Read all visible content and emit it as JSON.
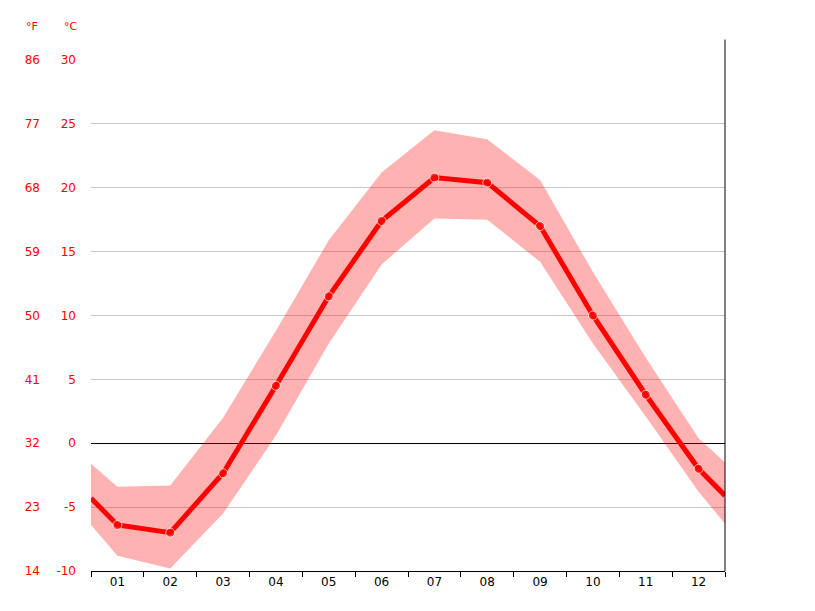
{
  "chart_data": {
    "type": "line",
    "x": [
      0.5,
      1,
      2,
      3,
      4,
      5,
      6,
      7,
      8,
      9,
      10,
      11,
      12,
      12.5
    ],
    "values": [
      -4.3,
      -6.4,
      -7.0,
      -2.35,
      4.5,
      11.5,
      17.4,
      20.8,
      20.4,
      17.0,
      10.0,
      3.8,
      -2.0,
      -4.1
    ],
    "high": [
      -1.6,
      -3.4,
      -3.3,
      2.0,
      8.8,
      15.9,
      21.2,
      24.5,
      23.8,
      20.6,
      13.4,
      6.7,
      0.4,
      -1.5
    ],
    "low": [
      -6.4,
      -8.8,
      -9.8,
      -5.5,
      0.6,
      7.8,
      14.0,
      17.6,
      17.5,
      14.2,
      7.8,
      2.1,
      -3.8,
      -6.3
    ],
    "color": "#ff0000",
    "xlim": [
      0.5,
      12.5
    ],
    "xticks": [
      {
        "value": 1,
        "label": "01"
      },
      {
        "value": 2,
        "label": "02"
      },
      {
        "value": 3,
        "label": "03"
      },
      {
        "value": 4,
        "label": "04"
      },
      {
        "value": 5,
        "label": "05"
      },
      {
        "value": 6,
        "label": "06"
      },
      {
        "value": 7,
        "label": "07"
      },
      {
        "value": 8,
        "label": "08"
      },
      {
        "value": 9,
        "label": "09"
      },
      {
        "value": 10,
        "label": "10"
      },
      {
        "value": 11,
        "label": "11"
      },
      {
        "value": 12,
        "label": "12"
      }
    ],
    "ylim": [
      -10,
      30
    ],
    "yticks": [
      -10,
      -5,
      0,
      5,
      10,
      15,
      20,
      25,
      30
    ],
    "ylabel": "°C",
    "y2lim": [
      14,
      86
    ],
    "y2ticks": [
      14,
      23,
      32,
      41,
      50,
      59,
      68,
      77,
      86
    ],
    "y2label": "°F",
    "grid": true
  }
}
